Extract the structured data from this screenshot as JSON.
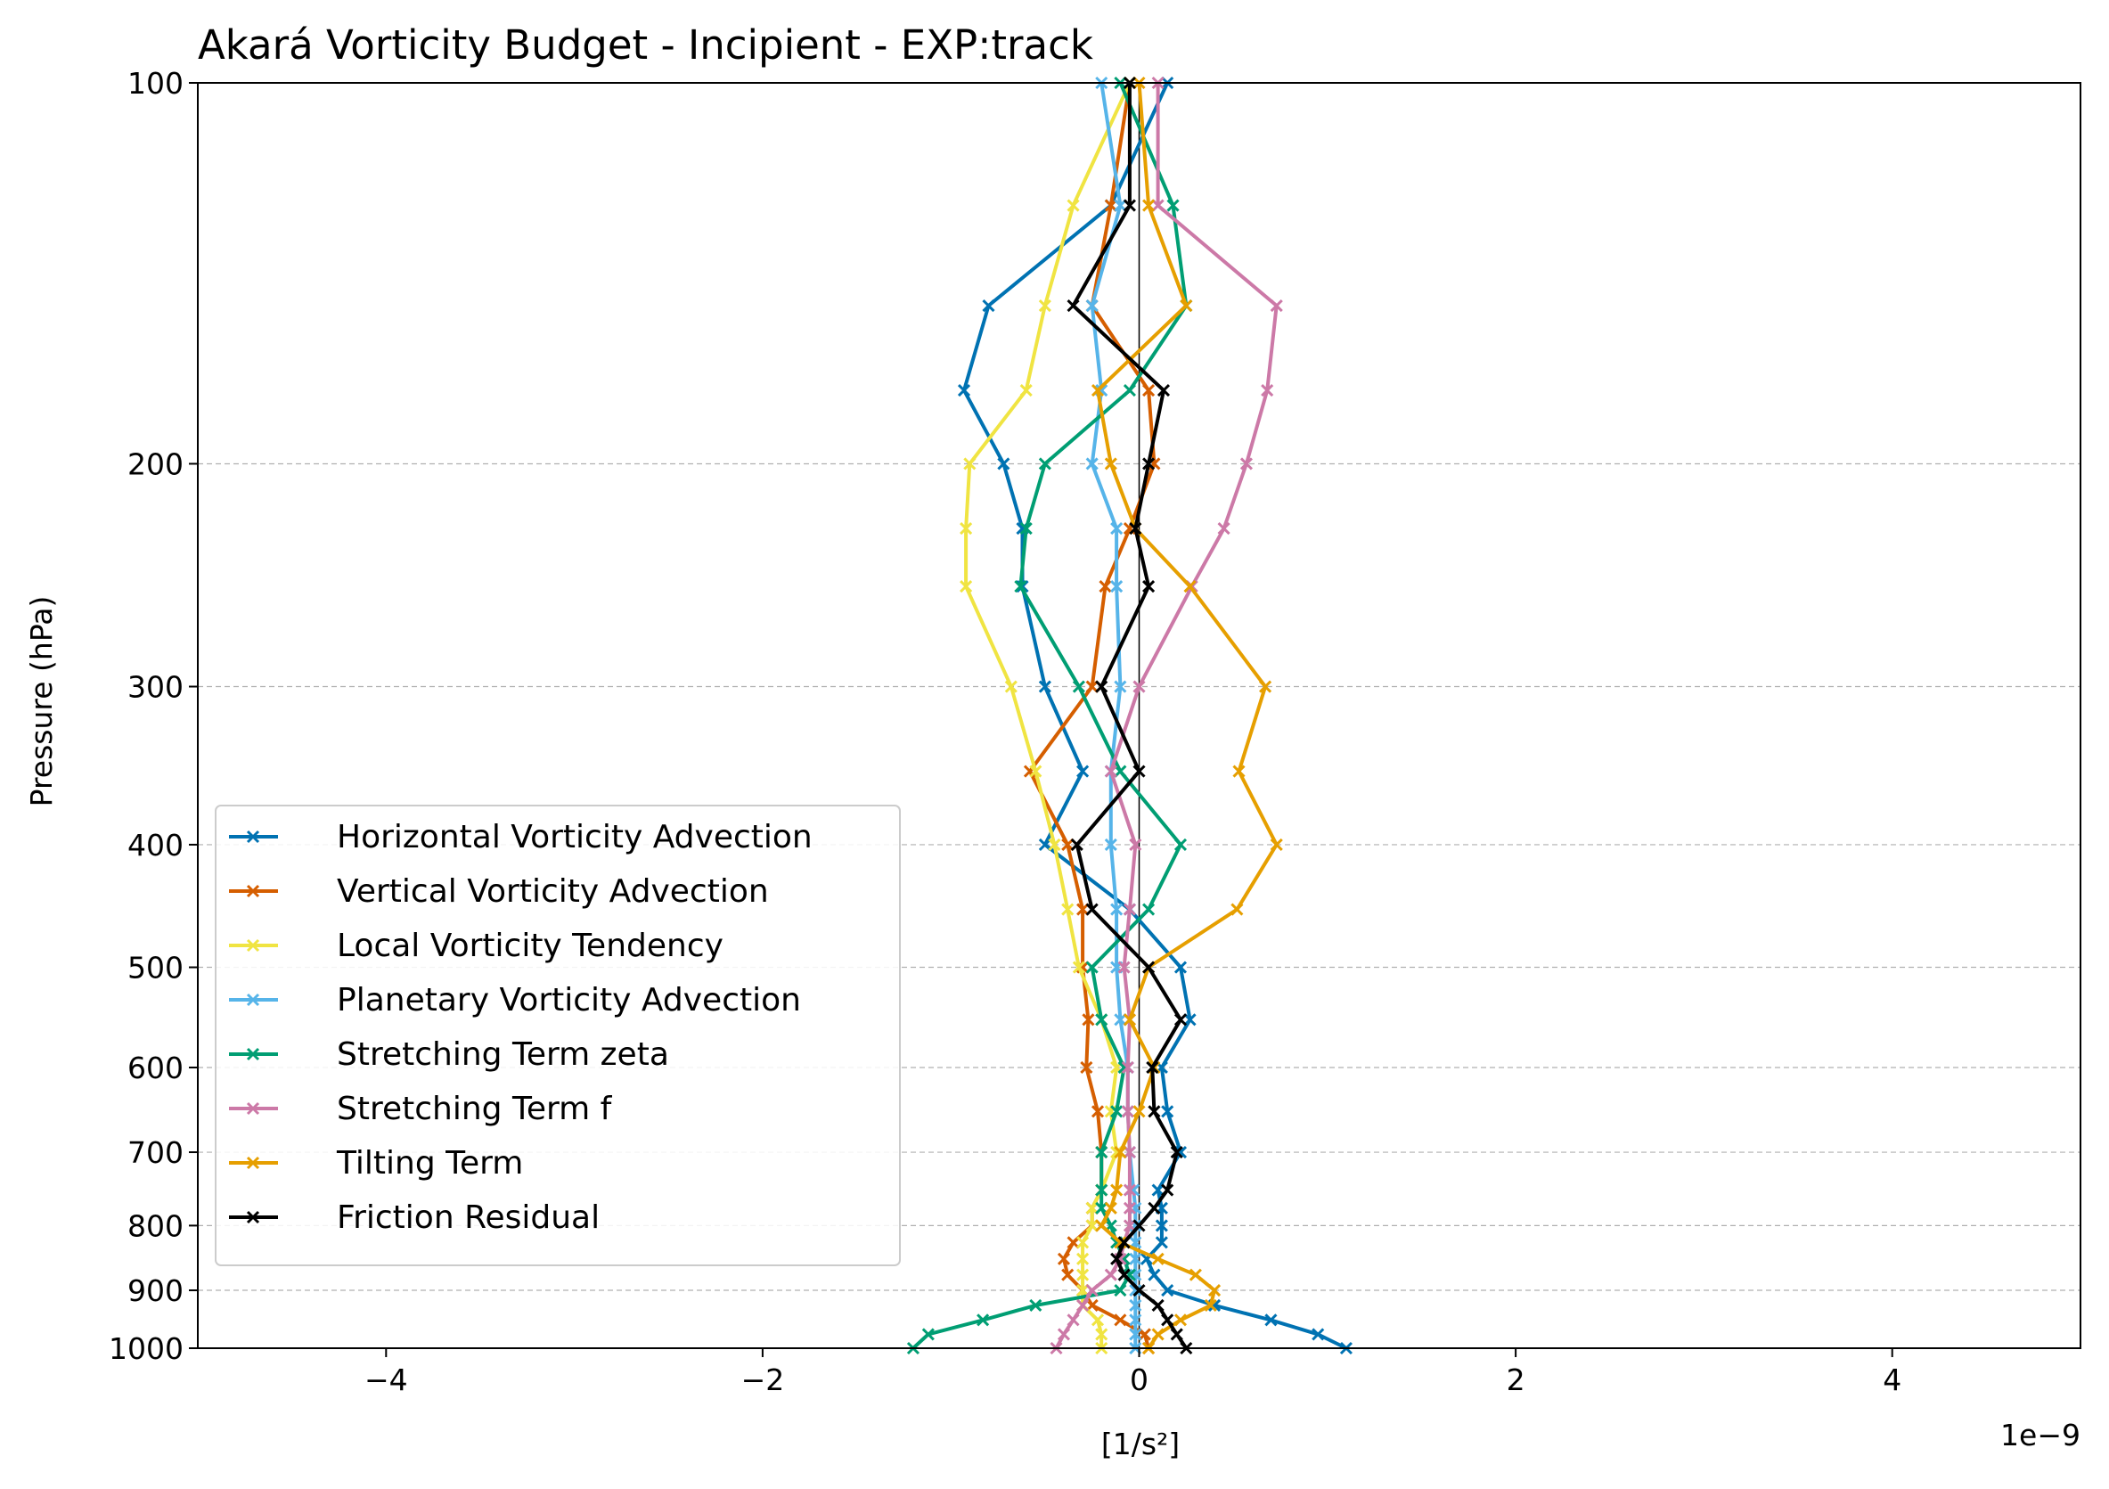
{
  "chart_data": {
    "type": "line",
    "title": "Akará Vorticity Budget - Incipient - EXP:track",
    "xlabel": "[1/s²]",
    "ylabel": "Pressure (hPa)",
    "x_offset_label": "1e−9",
    "xlim": [
      -5,
      5
    ],
    "ylim": [
      1000,
      100
    ],
    "yscale": "log",
    "x_ticks": [
      -4,
      -2,
      0,
      2,
      4
    ],
    "x_tick_labels": [
      "−4",
      "−2",
      "0",
      "2",
      "4"
    ],
    "y_ticks": [
      100,
      200,
      300,
      400,
      500,
      600,
      700,
      800,
      900,
      1000
    ],
    "y_tick_labels": [
      "100",
      "200",
      "300",
      "400",
      "500",
      "600",
      "700",
      "800",
      "900",
      "1000"
    ],
    "grid": "horizontal dashed",
    "legend_position": "lower-left",
    "levels": [
      1000,
      975,
      950,
      925,
      900,
      875,
      850,
      825,
      800,
      775,
      750,
      700,
      650,
      600,
      550,
      500,
      450,
      400,
      350,
      300,
      250,
      225,
      200,
      175,
      150,
      125,
      100
    ],
    "series": [
      {
        "name": "Horizontal Vorticity Advection",
        "color": "#0072b2",
        "values": [
          1.1,
          0.95,
          0.7,
          0.4,
          0.15,
          0.08,
          0.04,
          0.12,
          0.12,
          0.12,
          0.1,
          0.22,
          0.15,
          0.12,
          0.27,
          0.22,
          -0.05,
          -0.5,
          -0.3,
          -0.5,
          -0.62,
          -0.62,
          -0.72,
          -0.93,
          -0.8,
          -0.15,
          0.15
        ]
      },
      {
        "name": "Vertical Vorticity Advection",
        "color": "#d55e00",
        "values": [
          0.05,
          0.03,
          -0.1,
          -0.25,
          -0.3,
          -0.38,
          -0.4,
          -0.35,
          -0.25,
          -0.25,
          -0.2,
          -0.2,
          -0.22,
          -0.28,
          -0.27,
          -0.3,
          -0.3,
          -0.38,
          -0.58,
          -0.25,
          -0.18,
          -0.05,
          0.08,
          0.05,
          -0.25,
          -0.15,
          -0.05
        ]
      },
      {
        "name": "Local Vorticity Tendency",
        "color": "#f0e442",
        "values": [
          -0.2,
          -0.2,
          -0.22,
          -0.3,
          -0.3,
          -0.3,
          -0.3,
          -0.3,
          -0.25,
          -0.25,
          -0.2,
          -0.12,
          -0.15,
          -0.12,
          -0.2,
          -0.32,
          -0.38,
          -0.45,
          -0.55,
          -0.68,
          -0.92,
          -0.92,
          -0.9,
          -0.6,
          -0.5,
          -0.35,
          -0.05
        ]
      },
      {
        "name": "Planetary Vorticity Advection",
        "color": "#56b4e9",
        "values": [
          -0.02,
          -0.02,
          -0.02,
          -0.02,
          -0.02,
          -0.02,
          -0.02,
          -0.02,
          -0.02,
          -0.02,
          -0.03,
          -0.05,
          -0.06,
          -0.06,
          -0.1,
          -0.12,
          -0.12,
          -0.15,
          -0.15,
          -0.1,
          -0.12,
          -0.12,
          -0.25,
          -0.2,
          -0.25,
          -0.1,
          -0.2
        ]
      },
      {
        "name": "Stretching Term zeta",
        "color": "#009e73",
        "values": [
          -1.2,
          -1.12,
          -0.83,
          -0.55,
          -0.1,
          -0.05,
          -0.08,
          -0.12,
          -0.15,
          -0.2,
          -0.2,
          -0.2,
          -0.12,
          -0.08,
          -0.2,
          -0.25,
          0.05,
          0.22,
          -0.1,
          -0.32,
          -0.63,
          -0.6,
          -0.5,
          -0.05,
          0.25,
          0.18,
          -0.1
        ]
      },
      {
        "name": "Stretching Term f",
        "color": "#cc79a7",
        "values": [
          -0.44,
          -0.4,
          -0.35,
          -0.3,
          -0.25,
          -0.15,
          -0.1,
          -0.08,
          -0.05,
          -0.05,
          -0.05,
          -0.05,
          -0.06,
          -0.06,
          -0.05,
          -0.08,
          -0.05,
          -0.02,
          -0.15,
          0.0,
          0.28,
          0.45,
          0.57,
          0.68,
          0.73,
          0.1,
          0.1
        ]
      },
      {
        "name": "Tilting Term",
        "color": "#e69f00",
        "values": [
          0.05,
          0.1,
          0.22,
          0.38,
          0.4,
          0.3,
          0.1,
          -0.1,
          -0.2,
          -0.15,
          -0.12,
          -0.1,
          0.0,
          0.08,
          -0.05,
          0.05,
          0.52,
          0.73,
          0.53,
          0.67,
          0.27,
          -0.02,
          -0.15,
          -0.22,
          0.25,
          0.05,
          0.0
        ]
      },
      {
        "name": "Friction Residual",
        "color": "#000000",
        "values": [
          0.25,
          0.2,
          0.15,
          0.1,
          0.0,
          -0.08,
          -0.12,
          -0.08,
          0.0,
          0.08,
          0.15,
          0.2,
          0.08,
          0.07,
          0.22,
          0.05,
          -0.25,
          -0.33,
          0.0,
          -0.2,
          0.05,
          -0.02,
          0.05,
          0.13,
          -0.35,
          -0.05,
          -0.05
        ]
      }
    ]
  }
}
